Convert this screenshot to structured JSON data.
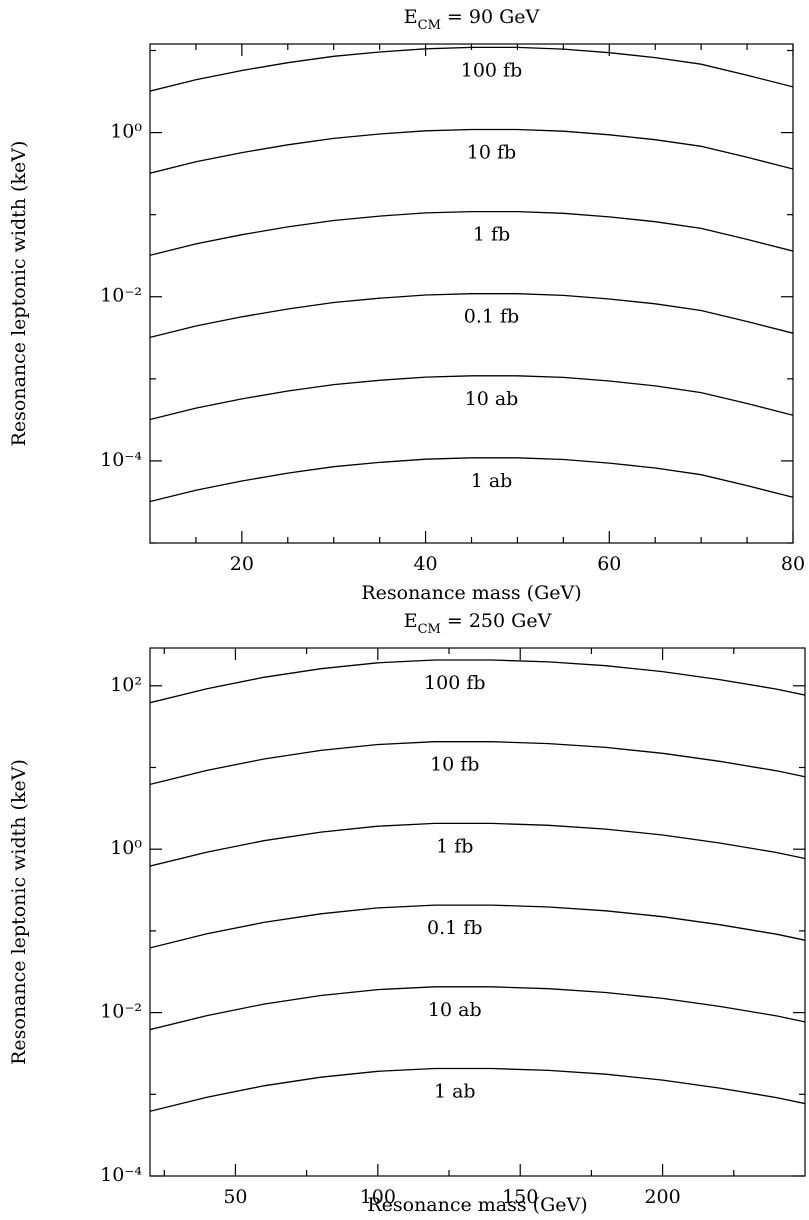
{
  "chart_data": [
    {
      "type": "line",
      "title_parts": [
        "E",
        "CM",
        " = 90 GeV"
      ],
      "xlabel": "Resonance mass (GeV)",
      "ylabel": "Resonance leptonic width (keV)",
      "log_y": true,
      "x": [
        10,
        15,
        20,
        25,
        30,
        35,
        40,
        45,
        50,
        55,
        60,
        65,
        70,
        75,
        80
      ],
      "series": [
        {
          "name": "100 fb",
          "color": "#000000",
          "values": [
            3.2,
            4.4,
            5.7,
            7.1,
            8.5,
            9.6,
            10.5,
            10.9,
            10.9,
            10.4,
            9.4,
            8.2,
            6.8,
            5,
            3.6
          ]
        },
        {
          "name": "10 fb",
          "color": "#000000",
          "values": [
            0.32,
            0.44,
            0.57,
            0.71,
            0.85,
            0.96,
            1.05,
            1.09,
            1.09,
            1.04,
            0.94,
            0.82,
            0.68,
            0.5,
            0.36
          ]
        },
        {
          "name": "1 fb",
          "color": "#000000",
          "values": [
            0.032,
            0.044,
            0.057,
            0.071,
            0.085,
            0.096,
            0.105,
            0.109,
            0.109,
            0.104,
            0.094,
            0.082,
            0.068,
            0.05,
            0.036
          ]
        },
        {
          "name": "0.1 fb",
          "color": "#000000",
          "values": [
            0.0032,
            0.0044,
            0.0057,
            0.0071,
            0.0085,
            0.0096,
            0.0105,
            0.0109,
            0.0109,
            0.0104,
            0.0094,
            0.0082,
            0.0068,
            0.005,
            0.0036
          ]
        },
        {
          "name": "10 ab",
          "color": "#000000",
          "values": [
            0.00032,
            0.00044,
            0.00057,
            0.00071,
            0.00085,
            0.00096,
            0.00105,
            0.00109,
            0.00109,
            0.00104,
            0.00094,
            0.00082,
            0.00068,
            0.0005,
            0.00036
          ]
        },
        {
          "name": "1 ab",
          "color": "#000000",
          "values": [
            3.2e-05,
            4.4e-05,
            5.7e-05,
            7.1e-05,
            8.5e-05,
            9.6e-05,
            0.000105,
            0.000109,
            0.000109,
            0.000104,
            9.4e-05,
            8.2e-05,
            6.8e-05,
            5e-05,
            3.6e-05
          ]
        }
      ],
      "xlim": [
        10,
        80
      ],
      "xticks": [
        20,
        40,
        60,
        80
      ],
      "xminor_ticks": [
        15,
        25,
        30,
        35,
        45,
        50,
        55,
        65,
        70,
        75
      ],
      "ylim": [
        1e-05,
        12
      ],
      "yticks": [
        {
          "value": 1,
          "label": "10⁰"
        },
        {
          "value": 0.01,
          "label": "10⁻²"
        },
        {
          "value": 0.0001,
          "label": "10⁻⁴"
        }
      ],
      "yminor_ticks": [
        10,
        0.1,
        0.001,
        1e-05
      ]
    },
    {
      "type": "line",
      "title_parts": [
        "E",
        "CM",
        " = 250 GeV"
      ],
      "xlabel": "Resonance mass (GeV)",
      "ylabel": "Resonance leptonic width (keV)",
      "log_y": true,
      "x": [
        20,
        40,
        60,
        80,
        100,
        120,
        140,
        160,
        180,
        200,
        220,
        240,
        250
      ],
      "series": [
        {
          "name": "100 fb",
          "color": "#000000",
          "values": [
            62,
            92,
            127,
            162,
            191,
            207,
            207,
            196,
            176,
            149,
            119,
            91,
            77
          ]
        },
        {
          "name": "10 fb",
          "color": "#000000",
          "values": [
            6.2,
            9.2,
            12.7,
            16.2,
            19.1,
            20.7,
            20.7,
            19.6,
            17.6,
            14.9,
            11.9,
            9.1,
            7.7
          ]
        },
        {
          "name": "1 fb",
          "color": "#000000",
          "values": [
            0.62,
            0.92,
            1.27,
            1.62,
            1.91,
            2.07,
            2.07,
            1.96,
            1.76,
            1.49,
            1.19,
            0.91,
            0.77
          ]
        },
        {
          "name": "0.1 fb",
          "color": "#000000",
          "values": [
            0.062,
            0.092,
            0.127,
            0.162,
            0.191,
            0.207,
            0.207,
            0.196,
            0.176,
            0.149,
            0.119,
            0.091,
            0.077
          ]
        },
        {
          "name": "10 ab",
          "color": "#000000",
          "values": [
            0.0062,
            0.0092,
            0.0127,
            0.0162,
            0.0191,
            0.0207,
            0.0207,
            0.0196,
            0.0176,
            0.0149,
            0.0119,
            0.0091,
            0.0077
          ]
        },
        {
          "name": "1 ab",
          "color": "#000000",
          "values": [
            0.00062,
            0.00092,
            0.00127,
            0.00162,
            0.00191,
            0.00207,
            0.00207,
            0.00196,
            0.00176,
            0.00149,
            0.00119,
            0.00091,
            0.00077
          ]
        }
      ],
      "xlim": [
        20,
        250
      ],
      "xticks": [
        50,
        100,
        150,
        200
      ],
      "xminor_ticks": [
        25,
        75,
        125,
        175,
        225
      ],
      "ylim": [
        0.0001,
        290
      ],
      "yticks": [
        {
          "value": 100,
          "label": "10²"
        },
        {
          "value": 1,
          "label": "10⁰"
        },
        {
          "value": 0.01,
          "label": "10⁻²"
        },
        {
          "value": 0.0001,
          "label": "10⁻⁴"
        }
      ],
      "yminor_ticks": [
        10,
        0.1,
        0.001
      ]
    }
  ]
}
